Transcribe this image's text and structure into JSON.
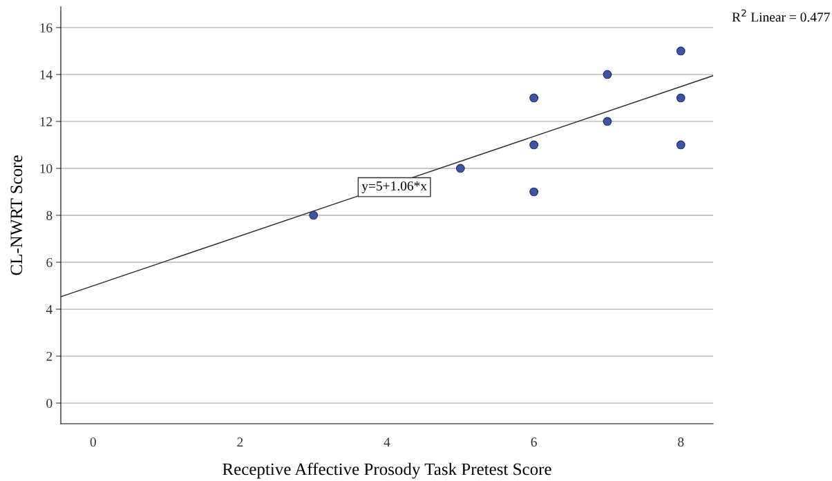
{
  "chart_data": {
    "type": "scatter",
    "xlabel": "Receptive Affective Prosody Task Pretest Score",
    "ylabel": "CL-NWRT Score",
    "series": [
      {
        "color": "#3a55a5",
        "marker": "circle",
        "x": [
          3,
          5,
          6,
          6,
          6,
          7,
          7,
          8,
          8,
          8
        ],
        "values": [
          8,
          10,
          13,
          11,
          9,
          14,
          12,
          15,
          13,
          11
        ]
      },
      {
        "type": "line",
        "color": "#333333",
        "marker": "none",
        "x": [
          -0.44,
          8.44
        ],
        "values": [
          4.53,
          13.95
        ]
      }
    ],
    "annotations": [
      {
        "text": "y=5+1.06*x",
        "x": 4.1,
        "y": 9.2
      },
      "R$^{2}$ Linear = 0.477"
    ],
    "xlim": [
      -0.44,
      8.44
    ],
    "ylim": [
      -0.88,
      16.88
    ],
    "xticks": [
      0,
      2,
      4,
      6,
      8
    ],
    "yticks": [
      0,
      2,
      4,
      6,
      8,
      10,
      12,
      14,
      16
    ],
    "grid": "y",
    "line_style": "solid"
  }
}
